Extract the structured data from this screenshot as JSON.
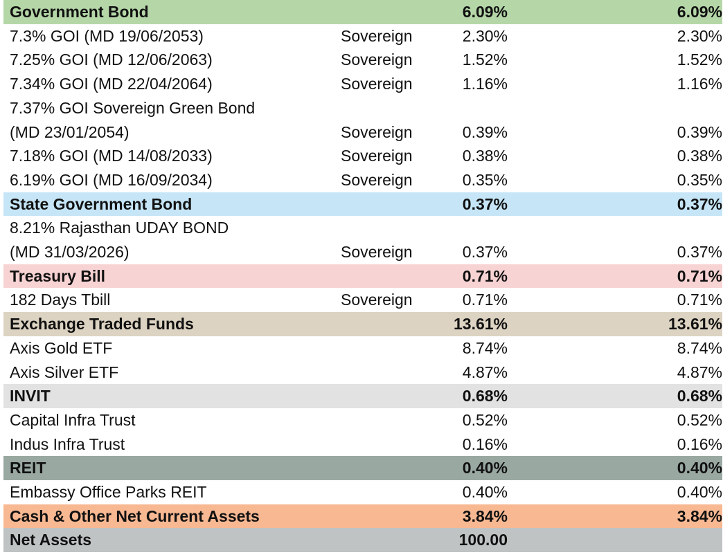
{
  "colors": {
    "government_bond": "#b5d7a8",
    "state_government_bond": "#c6e6f7",
    "treasury_bill": "#f8d3d3",
    "exchange_traded_funds": "#ddd3c2",
    "invit": "#e2e2e2",
    "reit": "#9aa8a2",
    "cash": "#f7b892",
    "net_assets": "#bfc3c3"
  },
  "rows": [
    {
      "type": "head",
      "color": "government_bond",
      "name": "Government Bond",
      "rating": "",
      "pct1": "6.09%",
      "pct2": "6.09%"
    },
    {
      "type": "item",
      "name": "7.3% GOI (MD 19/06/2053)",
      "rating": "Sovereign",
      "pct1": "2.30%",
      "pct2": "2.30%"
    },
    {
      "type": "item",
      "name": "7.25% GOI (MD 12/06/2063)",
      "rating": "Sovereign",
      "pct1": "1.52%",
      "pct2": "1.52%"
    },
    {
      "type": "item",
      "name": "7.34% GOI (MD 22/04/2064)",
      "rating": "Sovereign",
      "pct1": "1.16%",
      "pct2": "1.16%"
    },
    {
      "type": "item",
      "name": "7.37% GOI Sovereign Green Bond",
      "rating": "",
      "pct1": "",
      "pct2": ""
    },
    {
      "type": "item",
      "name": "(MD 23/01/2054)",
      "rating": "Sovereign",
      "pct1": "0.39%",
      "pct2": "0.39%"
    },
    {
      "type": "item",
      "name": "7.18% GOI (MD 14/08/2033)",
      "rating": "Sovereign",
      "pct1": "0.38%",
      "pct2": "0.38%"
    },
    {
      "type": "item",
      "name": "6.19% GOI (MD 16/09/2034)",
      "rating": "Sovereign",
      "pct1": "0.35%",
      "pct2": "0.35%"
    },
    {
      "type": "head",
      "color": "state_government_bond",
      "name": "State Government Bond",
      "rating": "",
      "pct1": "0.37%",
      "pct2": "0.37%"
    },
    {
      "type": "item",
      "name": "8.21% Rajasthan UDAY BOND",
      "rating": "",
      "pct1": "",
      "pct2": ""
    },
    {
      "type": "item",
      "name": "(MD 31/03/2026)",
      "rating": "Sovereign",
      "pct1": "0.37%",
      "pct2": "0.37%"
    },
    {
      "type": "head",
      "color": "treasury_bill",
      "name": "Treasury Bill",
      "rating": "",
      "pct1": "0.71%",
      "pct2": "0.71%"
    },
    {
      "type": "item",
      "name": "182 Days Tbill",
      "rating": "Sovereign",
      "pct1": "0.71%",
      "pct2": "0.71%"
    },
    {
      "type": "head",
      "color": "exchange_traded_funds",
      "name": "Exchange Traded Funds",
      "rating": "",
      "pct1": "13.61%",
      "pct2": "13.61%"
    },
    {
      "type": "item",
      "name": "Axis Gold ETF",
      "rating": "",
      "pct1": "8.74%",
      "pct2": "8.74%"
    },
    {
      "type": "item",
      "name": "Axis Silver ETF",
      "rating": "",
      "pct1": "4.87%",
      "pct2": "4.87%"
    },
    {
      "type": "head",
      "color": "invit",
      "name": "INVIT",
      "rating": "",
      "pct1": "0.68%",
      "pct2": "0.68%"
    },
    {
      "type": "item",
      "name": "Capital Infra Trust",
      "rating": "",
      "pct1": "0.52%",
      "pct2": "0.52%"
    },
    {
      "type": "item",
      "name": "Indus Infra Trust",
      "rating": "",
      "pct1": "0.16%",
      "pct2": "0.16%"
    },
    {
      "type": "head",
      "color": "reit",
      "name": "REIT",
      "rating": "",
      "pct1": "0.40%",
      "pct2": "0.40%"
    },
    {
      "type": "item",
      "name": "Embassy Office Parks REIT",
      "rating": "",
      "pct1": "0.40%",
      "pct2": "0.40%"
    },
    {
      "type": "head",
      "color": "cash",
      "name": "Cash & Other Net Current Assets",
      "rating": "",
      "pct1": "3.84%",
      "pct2": "3.84%"
    },
    {
      "type": "head",
      "color": "net_assets",
      "name": "Net Assets",
      "rating": "",
      "pct1": "100.00",
      "pct2": ""
    }
  ]
}
